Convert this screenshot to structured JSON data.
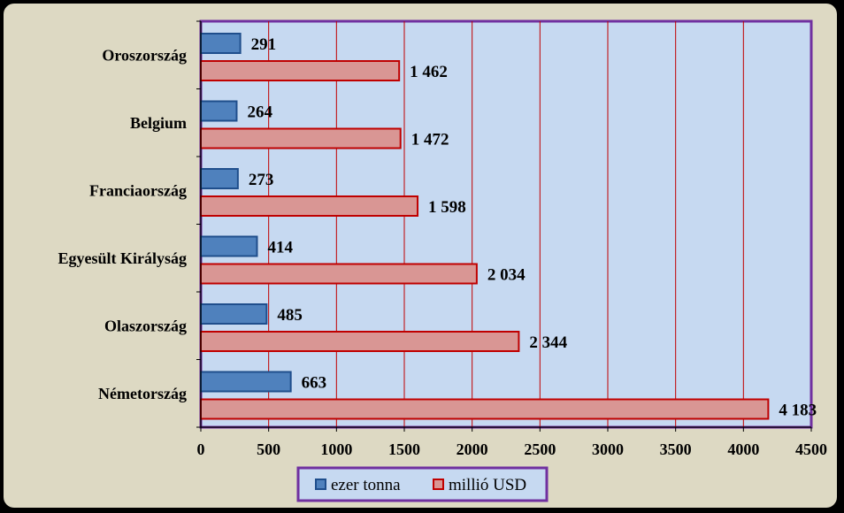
{
  "chart_data": {
    "type": "bar",
    "orientation": "horizontal",
    "categories": [
      "Oroszország",
      "Belgium",
      "Franciaország",
      "Egyesült Királyság",
      "Olaszország",
      "Németország"
    ],
    "series": [
      {
        "name": "ezer tonna",
        "values": [
          291,
          264,
          273,
          414,
          485,
          663
        ],
        "labels": [
          "291",
          "264",
          "273",
          "414",
          "485",
          "663"
        ],
        "color": "#4f81bd",
        "border": "#1f4e8c"
      },
      {
        "name": "millió USD",
        "values": [
          1462,
          1472,
          1598,
          2034,
          2344,
          4183
        ],
        "labels": [
          "1 462",
          "1 472",
          "1 598",
          "2 034",
          "2 344",
          "4 183"
        ],
        "color": "#d99694",
        "border": "#c00000"
      }
    ],
    "xlim": [
      0,
      4500
    ],
    "xticks": [
      0,
      500,
      1000,
      1500,
      2000,
      2500,
      3000,
      3500,
      4000,
      4500
    ],
    "grid": true,
    "legend_position": "bottom",
    "colors": {
      "background": "#ddd9c3",
      "plot_area": "#c6d9f1",
      "plot_border": "#7030a0",
      "gridline": "#c00000"
    }
  }
}
